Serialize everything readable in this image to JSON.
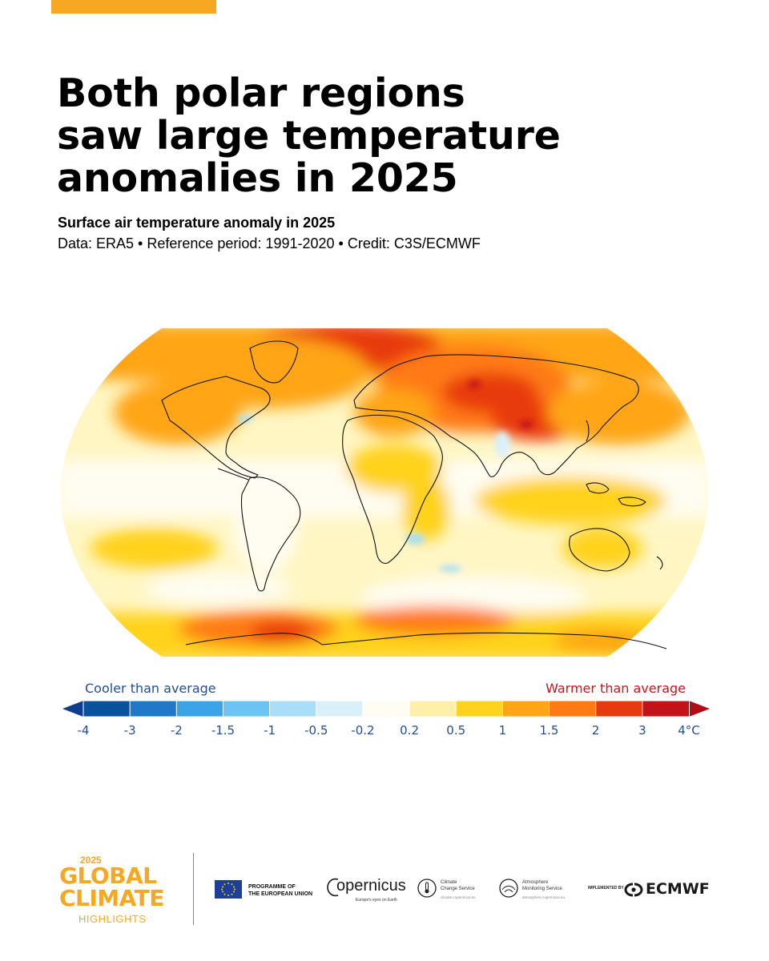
{
  "page": {
    "title_lines": [
      "Both polar regions",
      "saw large temperature",
      "anomalies in 2025"
    ],
    "subtitle": "Surface air temperature anomaly in 2025",
    "credit": "Data: ERA5 • Reference period: 1991-2020 • Credit: C3S/ECMWF"
  },
  "map": {
    "projection": "Robinson-like world map",
    "regions": [
      {
        "name": "Arctic",
        "anomaly_class": "2 to 4 °C"
      },
      {
        "name": "Northern Asia",
        "anomaly_class": "2 to 4 °C"
      },
      {
        "name": "Antarctic coast",
        "anomaly_class": "2 to 4 °C"
      },
      {
        "name": "Tropical oceans",
        "anomaly_class": "-0.2 to 0.5 °C"
      },
      {
        "name": "Southern Africa (patches)",
        "anomaly_class": "-1 to -0.2 °C"
      }
    ]
  },
  "legend": {
    "cool_label": "Cooler than average",
    "warm_label": "Warmer than average",
    "ticks": [
      "-4",
      "-3",
      "-2",
      "-1.5",
      "-1",
      "-0.5",
      "-0.2",
      "0.2",
      "0.5",
      "1",
      "1.5",
      "2",
      "3",
      "4°C"
    ],
    "colors": [
      "#08519c",
      "#1f78c8",
      "#3ba3e8",
      "#6cc4f2",
      "#a8def7",
      "#d9f0fb",
      "#fffdf2",
      "#ffefa8",
      "#ffd21f",
      "#ffa516",
      "#ff7a12",
      "#e83a0f",
      "#c2121a"
    ],
    "left_arrow_color": "#0b3d91",
    "right_arrow_color": "#b10d16"
  },
  "footer": {
    "brand_year": "2025",
    "brand_global": "GLOBAL",
    "brand_climate": "CLIMATE",
    "brand_highlights": "HIGHLIGHTS",
    "eu_line1": "PROGRAMME OF",
    "eu_line2": "THE EUROPEAN UNION",
    "copernicus_name": "opernicus",
    "copernicus_tagline": "Europe's eyes on Earth",
    "c3s_line1": "Climate",
    "c3s_line2": "Change Service",
    "c3s_url": "climate.copernicus.eu",
    "cams_line1": "Atmosphere",
    "cams_line2": "Monitoring Service",
    "cams_url": "atmosphere.copernicus.eu",
    "implemented_by": "IMPLEMENTED BY",
    "ecmwf": "ECMWF"
  }
}
